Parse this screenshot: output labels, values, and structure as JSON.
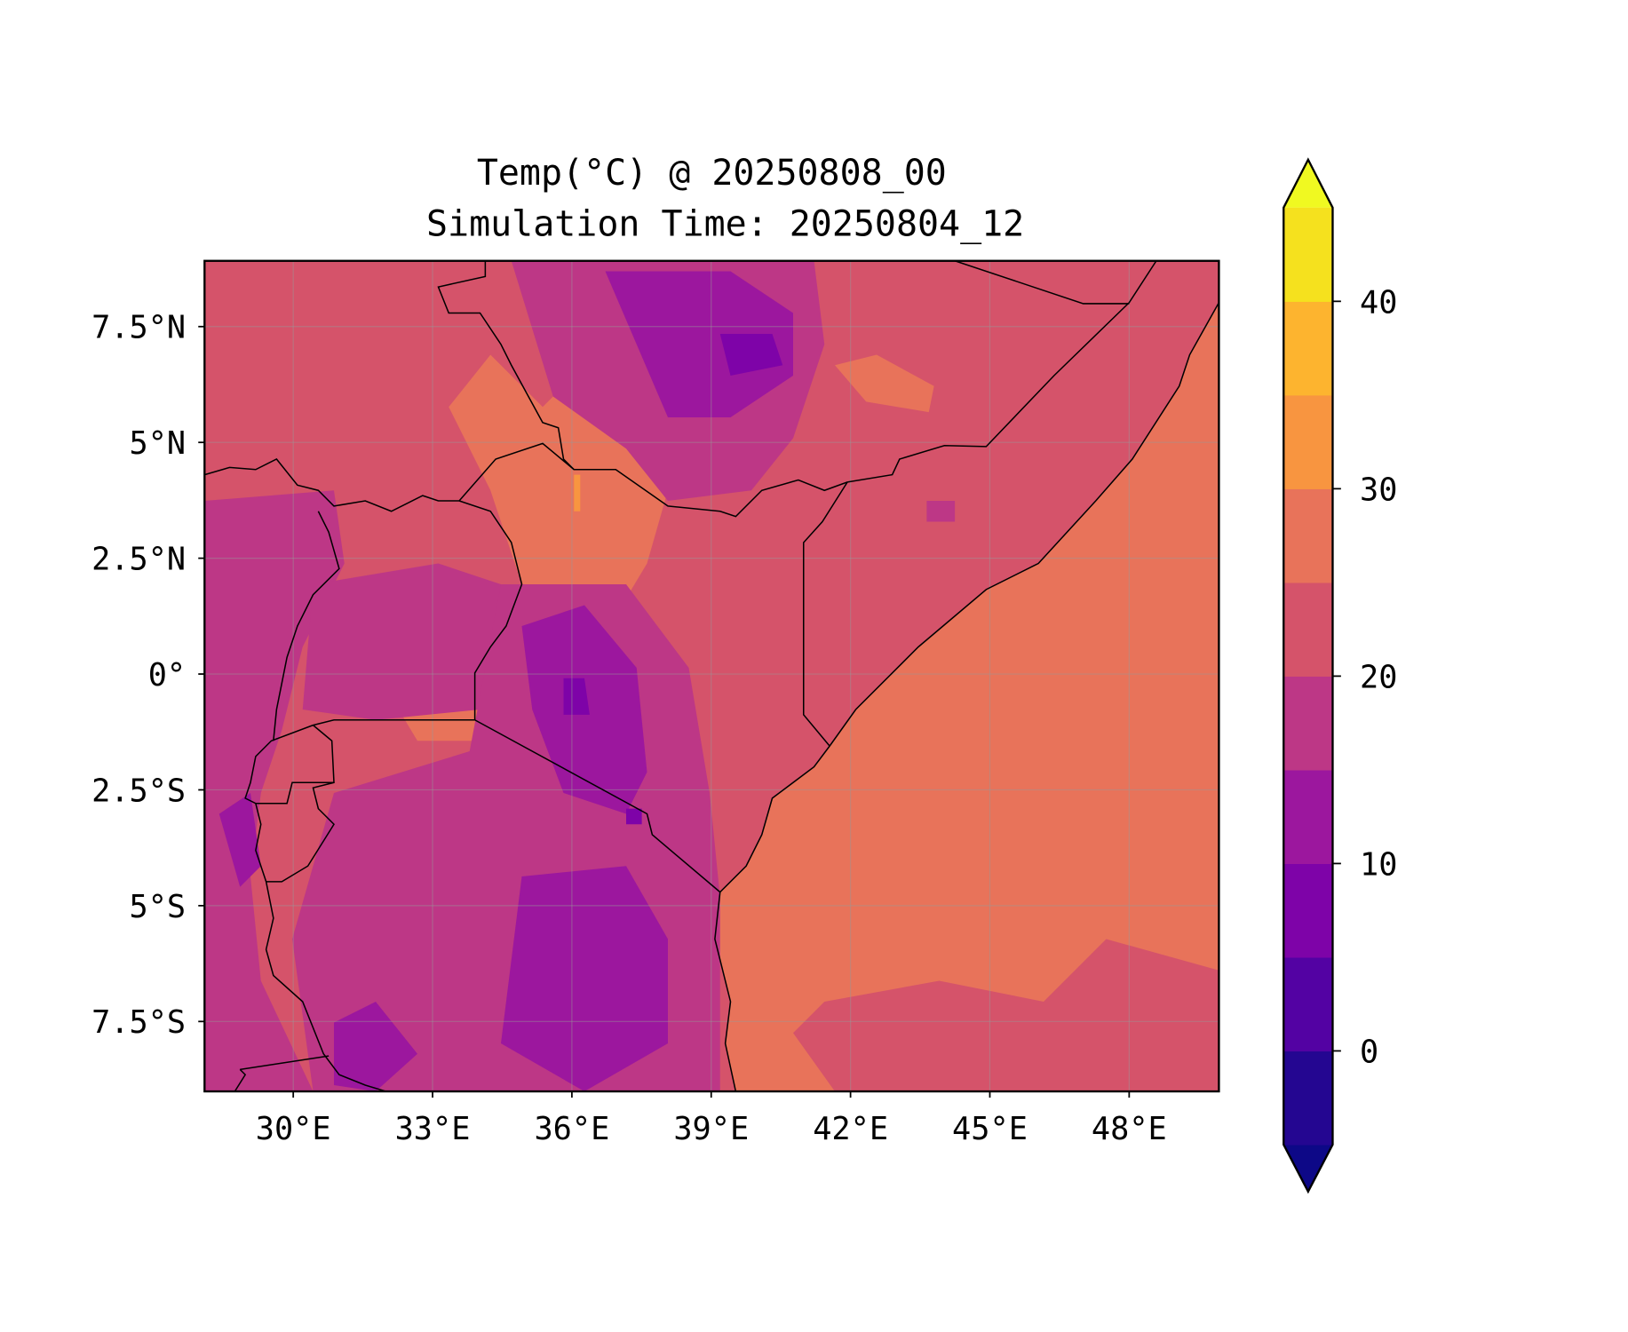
{
  "chart_data": {
    "type": "heatmap",
    "subtype": "filled contour map",
    "title_line1": "Temp(°C) @ 20250808_00",
    "title_line2": "Simulation Time: 20250804_12",
    "xlabel": "",
    "ylabel": "",
    "x_ticks": [
      {
        "value": 30,
        "label": "30°E"
      },
      {
        "value": 33,
        "label": "33°E"
      },
      {
        "value": 36,
        "label": "36°E"
      },
      {
        "value": 39,
        "label": "39°E"
      },
      {
        "value": 42,
        "label": "42°E"
      },
      {
        "value": 45,
        "label": "45°E"
      },
      {
        "value": 48,
        "label": "48°E"
      }
    ],
    "y_ticks": [
      {
        "value": 7.5,
        "label": "7.5°N"
      },
      {
        "value": 5,
        "label": "5°N"
      },
      {
        "value": 2.5,
        "label": "2.5°N"
      },
      {
        "value": 0,
        "label": "0°"
      },
      {
        "value": -2.5,
        "label": "2.5°S"
      },
      {
        "value": -5,
        "label": "5°S"
      },
      {
        "value": -7.5,
        "label": "7.5°S"
      }
    ],
    "xlim": [
      28.1,
      49.95
    ],
    "ylim": [
      -9.0,
      8.9
    ],
    "grid": true,
    "colorbar": {
      "position": "right",
      "levels": [
        -5,
        0,
        5,
        10,
        15,
        20,
        25,
        30,
        35,
        40,
        45
      ],
      "colors": [
        "#240691",
        "#5302a3",
        "#7e03a8",
        "#9c179e",
        "#bd3786",
        "#d5536a",
        "#e8735a",
        "#f89540",
        "#fdb42f",
        "#f5e11e"
      ],
      "extend_low_color": "#0d0887",
      "extend_high_color": "#f0f921",
      "ticks": [
        {
          "value": 0,
          "label": "0"
        },
        {
          "value": 10,
          "label": "10"
        },
        {
          "value": 20,
          "label": "20"
        },
        {
          "value": 30,
          "label": "30"
        },
        {
          "value": 40,
          "label": "40"
        }
      ]
    },
    "field_summary": {
      "ocean_and_coastal_range": [
        25,
        30
      ],
      "inland_lowlands_range": [
        20,
        25
      ],
      "highlands_range": [
        5,
        20
      ]
    }
  }
}
